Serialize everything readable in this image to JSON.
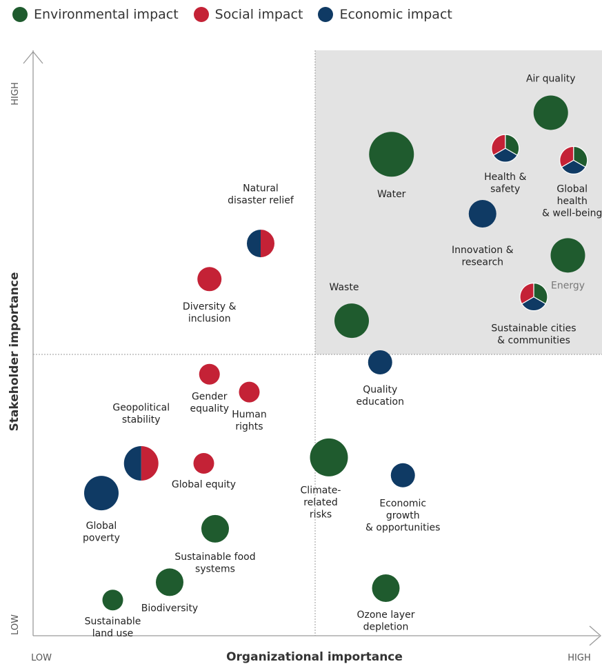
{
  "legend": {
    "environmental": {
      "label": "Environmental impact",
      "color": "#1f5b2e"
    },
    "social": {
      "label": "Social impact",
      "color": "#c42236"
    },
    "economic": {
      "label": "Economic impact",
      "color": "#0f3a64"
    }
  },
  "chart_data": {
    "type": "scatter",
    "title": "",
    "xlabel": "Organizational importance",
    "ylabel": "Stakeholder importance",
    "x_tick_low": "LOW",
    "x_tick_high": "HIGH",
    "y_tick_low": "LOW",
    "y_tick_high": "HIGH",
    "quadrant_shading": "top-right",
    "points": [
      {
        "label": "Air quality",
        "x": 0.91,
        "y": 0.88,
        "size": 1.0,
        "composition": [
          "E"
        ]
      },
      {
        "label": "Water",
        "x": 0.63,
        "y": 0.81,
        "size": 1.3,
        "composition": [
          "E"
        ]
      },
      {
        "label": "Health & safety",
        "x": 0.83,
        "y": 0.82,
        "size": 0.8,
        "composition": [
          "E",
          "EC",
          "S"
        ]
      },
      {
        "label": "Global health & well-being",
        "x": 0.95,
        "y": 0.8,
        "size": 0.8,
        "composition": [
          "E",
          "EC",
          "S"
        ]
      },
      {
        "label": "Innovation & research",
        "x": 0.79,
        "y": 0.71,
        "size": 0.8,
        "composition": [
          "EC"
        ]
      },
      {
        "label": "Energy",
        "x": 0.94,
        "y": 0.64,
        "size": 1.0,
        "composition": [
          "E"
        ]
      },
      {
        "label": "Sustainable cities & communities",
        "x": 0.88,
        "y": 0.57,
        "size": 0.8,
        "composition": [
          "E",
          "EC",
          "S"
        ]
      },
      {
        "label": "Waste",
        "x": 0.56,
        "y": 0.53,
        "size": 1.0,
        "composition": [
          "E"
        ]
      },
      {
        "label": "Quality education",
        "x": 0.61,
        "y": 0.46,
        "size": 0.7,
        "composition": [
          "EC"
        ]
      },
      {
        "label": "Natural disaster relief",
        "x": 0.4,
        "y": 0.66,
        "size": 0.8,
        "composition": [
          "EC",
          "S"
        ]
      },
      {
        "label": "Diversity & inclusion",
        "x": 0.31,
        "y": 0.6,
        "size": 0.7,
        "composition": [
          "S"
        ]
      },
      {
        "label": "Gender equality",
        "x": 0.31,
        "y": 0.44,
        "size": 0.6,
        "composition": [
          "S"
        ]
      },
      {
        "label": "Human rights",
        "x": 0.38,
        "y": 0.41,
        "size": 0.6,
        "composition": [
          "S"
        ]
      },
      {
        "label": "Geopolitical stability",
        "x": 0.19,
        "y": 0.29,
        "size": 1.0,
        "composition": [
          "EC",
          "S"
        ]
      },
      {
        "label": "Global equity",
        "x": 0.3,
        "y": 0.29,
        "size": 0.6,
        "composition": [
          "S"
        ]
      },
      {
        "label": "Global poverty",
        "x": 0.12,
        "y": 0.24,
        "size": 1.0,
        "composition": [
          "EC"
        ]
      },
      {
        "label": "Climate-related risks",
        "x": 0.52,
        "y": 0.3,
        "size": 1.1,
        "composition": [
          "E"
        ]
      },
      {
        "label": "Economic growth & opportunities",
        "x": 0.65,
        "y": 0.27,
        "size": 0.7,
        "composition": [
          "EC"
        ]
      },
      {
        "label": "Sustainable food systems",
        "x": 0.32,
        "y": 0.18,
        "size": 0.8,
        "composition": [
          "E"
        ]
      },
      {
        "label": "Biodiversity",
        "x": 0.24,
        "y": 0.09,
        "size": 0.8,
        "composition": [
          "E"
        ]
      },
      {
        "label": "Sustainable land use",
        "x": 0.14,
        "y": 0.06,
        "size": 0.6,
        "composition": [
          "E"
        ]
      },
      {
        "label": "Ozone layer depletion",
        "x": 0.62,
        "y": 0.08,
        "size": 0.8,
        "composition": [
          "E"
        ]
      }
    ],
    "annotations": [
      {
        "text": "Air quality",
        "lines": [
          "Air quality"
        ]
      },
      {
        "text": "Water",
        "lines": [
          "Water"
        ]
      },
      {
        "text": "Health & safety",
        "lines": [
          "Health &",
          "safety"
        ]
      },
      {
        "text": "Global health & well-being",
        "lines": [
          "Global",
          "health",
          "& well-being"
        ]
      },
      {
        "text": "Innovation & research",
        "lines": [
          "Innovation &",
          "research"
        ]
      },
      {
        "text": "Energy",
        "lines": [
          "Energy"
        ]
      },
      {
        "text": "Sustainable cities & communities",
        "lines": [
          "Sustainable cities",
          "& communities"
        ]
      },
      {
        "text": "Waste",
        "lines": [
          "Waste"
        ]
      },
      {
        "text": "Quality education",
        "lines": [
          "Quality",
          "education"
        ]
      },
      {
        "text": "Natural disaster relief",
        "lines": [
          "Natural",
          "disaster relief"
        ]
      },
      {
        "text": "Diversity & inclusion",
        "lines": [
          "Diversity &",
          "inclusion"
        ]
      },
      {
        "text": "Gender equality",
        "lines": [
          "Gender",
          "equality"
        ]
      },
      {
        "text": "Human rights",
        "lines": [
          "Human",
          "rights"
        ]
      },
      {
        "text": "Geopolitical stability",
        "lines": [
          "Geopolitical",
          "stability"
        ]
      },
      {
        "text": "Global equity",
        "lines": [
          "Global equity"
        ]
      },
      {
        "text": "Global poverty",
        "lines": [
          "Global",
          "poverty"
        ]
      },
      {
        "text": "Climate-related risks",
        "lines": [
          "Climate-",
          "related",
          "risks"
        ]
      },
      {
        "text": "Economic growth & opportunities",
        "lines": [
          "Economic",
          "growth",
          "& opportunities"
        ]
      },
      {
        "text": "Sustainable food systems",
        "lines": [
          "Sustainable food",
          "systems"
        ]
      },
      {
        "text": "Biodiversity",
        "lines": [
          "Biodiversity"
        ]
      },
      {
        "text": "Sustainable land use",
        "lines": [
          "Sustainable",
          "land use"
        ]
      },
      {
        "text": "Ozone layer depletion",
        "lines": [
          "Ozone layer",
          "depletion"
        ]
      }
    ]
  }
}
